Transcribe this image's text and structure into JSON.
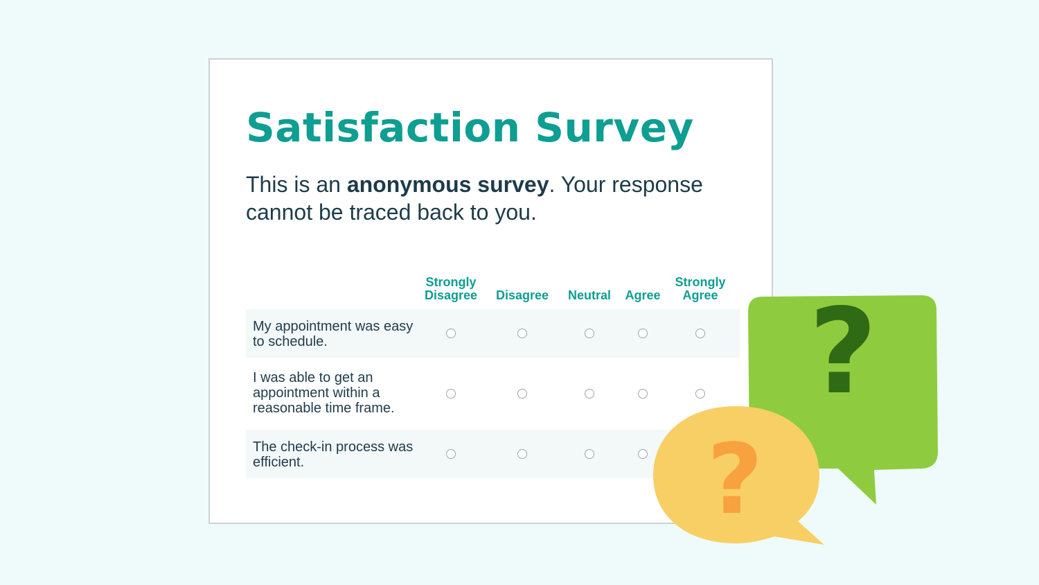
{
  "survey": {
    "title": "Satisfaction Survey",
    "intro_before": "This is an ",
    "intro_bold": "anonymous survey",
    "intro_after": ". Your response cannot be traced back to you.",
    "columns": [
      "Strongly\nDisagree",
      "Disagree",
      "Neutral",
      "Agree",
      "Strongly\nAgree"
    ],
    "questions": [
      "My appointment was easy to schedule.",
      "I was able to get an appointment within a reasonable time frame.",
      "The check-in process was efficient."
    ]
  },
  "decoration": {
    "green_bubble_glyph": "?",
    "yellow_bubble_glyph": "?",
    "green_bubble_icon": "question-speech-bubble-icon",
    "yellow_bubble_icon": "question-speech-bubble-icon"
  },
  "colors": {
    "page_bg": "#effbfa",
    "teal_accent": "#0e9e92",
    "text_dark": "#1e3b4a",
    "row_shade": "#f3f8f8",
    "green_bubble": "#8fcb3f",
    "green_mark": "#2f6b14",
    "yellow_bubble": "#f8cf65",
    "orange_mark": "#f7a23f"
  }
}
